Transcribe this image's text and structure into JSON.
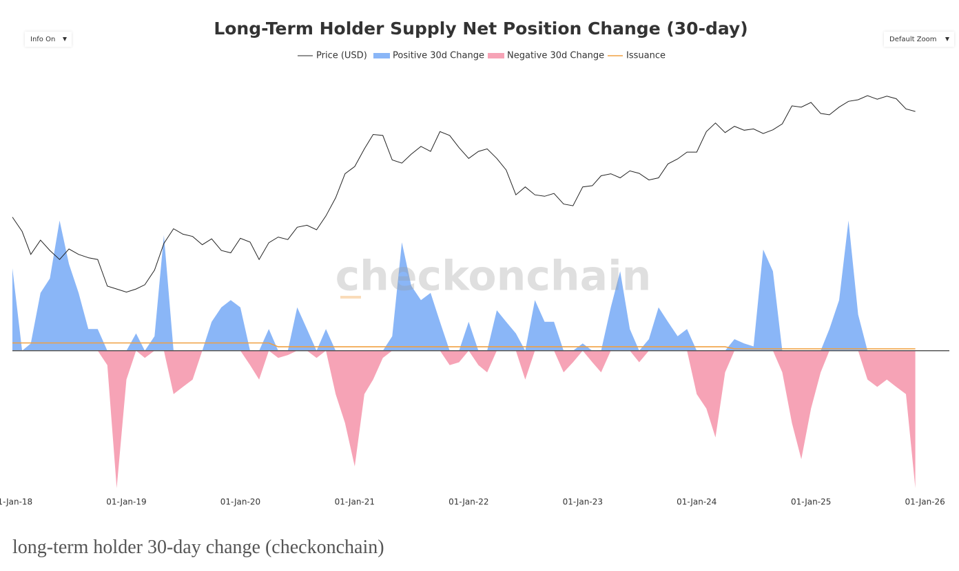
{
  "controls": {
    "info": "Info On",
    "zoom": "Default Zoom"
  },
  "watermark": "checkonchain",
  "caption": "long-term holder 30-day change (checkonchain)",
  "chart_data": {
    "type": "combo",
    "title": "Long-Term Holder Supply Net Position Change (30-day)",
    "x": [
      "2018-01-01",
      "2018-02-01",
      "2018-03-01",
      "2018-04-01",
      "2018-05-01",
      "2018-06-01",
      "2018-07-01",
      "2018-08-01",
      "2018-09-01",
      "2018-10-01",
      "2018-11-01",
      "2018-12-01",
      "2019-01-01",
      "2019-02-01",
      "2019-03-01",
      "2019-04-01",
      "2019-05-01",
      "2019-06-01",
      "2019-07-01",
      "2019-08-01",
      "2019-09-01",
      "2019-10-01",
      "2019-11-01",
      "2019-12-01",
      "2020-01-01",
      "2020-02-01",
      "2020-03-01",
      "2020-04-01",
      "2020-05-01",
      "2020-06-01",
      "2020-07-01",
      "2020-08-01",
      "2020-09-01",
      "2020-10-01",
      "2020-11-01",
      "2020-12-01",
      "2021-01-01",
      "2021-02-01",
      "2021-03-01",
      "2021-04-01",
      "2021-05-01",
      "2021-06-01",
      "2021-07-01",
      "2021-08-01",
      "2021-09-01",
      "2021-10-01",
      "2021-11-01",
      "2021-12-01",
      "2022-01-01",
      "2022-02-01",
      "2022-03-01",
      "2022-04-01",
      "2022-05-01",
      "2022-06-01",
      "2022-07-01",
      "2022-08-01",
      "2022-09-01",
      "2022-10-01",
      "2022-11-01",
      "2022-12-01",
      "2023-01-01",
      "2023-02-01",
      "2023-03-01",
      "2023-04-01",
      "2023-05-01",
      "2023-06-01",
      "2023-07-01",
      "2023-08-01",
      "2023-09-01",
      "2023-10-01",
      "2023-11-01",
      "2023-12-01",
      "2024-01-01",
      "2024-02-01",
      "2024-03-01",
      "2024-04-01",
      "2024-05-01",
      "2024-06-01",
      "2024-07-01",
      "2024-08-01",
      "2024-09-01",
      "2024-10-01",
      "2024-11-01",
      "2024-12-01",
      "2025-01-01",
      "2025-02-01",
      "2025-03-01",
      "2025-04-01",
      "2025-05-01",
      "2025-06-01",
      "2025-07-01",
      "2025-08-01",
      "2025-09-01",
      "2025-10-01",
      "2025-11-01",
      "2025-12-01"
    ],
    "xlim": [
      "2018-01-01",
      "2026-03-20"
    ],
    "xticks": [
      {
        "value": "2018-01-01",
        "label": "01-Jan-18"
      },
      {
        "value": "2019-01-01",
        "label": "01-Jan-19"
      },
      {
        "value": "2020-01-01",
        "label": "01-Jan-20"
      },
      {
        "value": "2021-01-01",
        "label": "01-Jan-21"
      },
      {
        "value": "2022-01-01",
        "label": "01-Jan-22"
      },
      {
        "value": "2023-01-01",
        "label": "01-Jan-23"
      },
      {
        "value": "2024-01-01",
        "label": "01-Jan-24"
      },
      {
        "value": "2025-01-01",
        "label": "01-Jan-25"
      },
      {
        "value": "2026-01-01",
        "label": "01-Jan-26"
      }
    ],
    "ylim": [
      -1000000,
      2140000
    ],
    "y2lim": [
      100,
      300000
    ],
    "y2log": true,
    "legend": "top",
    "series": [
      {
        "name": "Price (USD)",
        "type": "line",
        "axis": "y2",
        "color": "#222222",
        "values": [
          13500,
          10500,
          7000,
          9000,
          7500,
          6400,
          7700,
          7000,
          6600,
          6400,
          4000,
          3800,
          3600,
          3800,
          4100,
          5300,
          8500,
          11000,
          10000,
          9600,
          8300,
          9200,
          7500,
          7200,
          9300,
          8700,
          6400,
          8600,
          9500,
          9100,
          11300,
          11700,
          10800,
          13800,
          19000,
          29000,
          33000,
          45000,
          58000,
          57000,
          37000,
          35000,
          41000,
          47000,
          43000,
          61000,
          57000,
          46000,
          38000,
          43000,
          45000,
          38000,
          31000,
          20000,
          23000,
          20000,
          19500,
          20500,
          17000,
          16500,
          23000,
          23500,
          28000,
          29000,
          27000,
          30500,
          29200,
          26000,
          27000,
          34500,
          37700,
          42500,
          42500,
          61000,
          71000,
          60000,
          67000,
          62500,
          64000,
          59000,
          63000,
          70000,
          96000,
          94000,
          102000,
          84000,
          82000,
          94000,
          104000,
          107000,
          115000,
          108000,
          114000,
          109000,
          91000,
          87000
        ]
      },
      {
        "name": "Positive 30d Change",
        "type": "area",
        "color": "#8ab6f7",
        "values": [
          570000,
          0,
          50000,
          400000,
          500000,
          900000,
          600000,
          400000,
          150000,
          150000,
          0,
          0,
          0,
          120000,
          0,
          100000,
          800000,
          0,
          0,
          0,
          0,
          200000,
          300000,
          350000,
          300000,
          0,
          0,
          150000,
          0,
          0,
          300000,
          150000,
          0,
          150000,
          0,
          0,
          0,
          0,
          0,
          0,
          100000,
          750000,
          450000,
          350000,
          400000,
          200000,
          0,
          0,
          200000,
          0,
          0,
          280000,
          200000,
          120000,
          0,
          350000,
          200000,
          200000,
          0,
          0,
          50000,
          0,
          0,
          300000,
          550000,
          150000,
          0,
          80000,
          300000,
          200000,
          100000,
          150000,
          0,
          0,
          0,
          0,
          80000,
          50000,
          30000,
          700000,
          550000,
          0,
          0,
          0,
          0,
          0,
          150000,
          350000,
          900000,
          250000,
          0,
          0,
          0,
          0,
          0,
          0
        ]
      },
      {
        "name": "Negative 30d Change",
        "type": "area",
        "color": "#f6a3b6",
        "values": [
          0,
          0,
          0,
          0,
          0,
          0,
          0,
          0,
          0,
          0,
          -100000,
          -950000,
          -200000,
          0,
          -50000,
          0,
          0,
          -300000,
          -250000,
          -200000,
          0,
          0,
          0,
          0,
          0,
          -100000,
          -200000,
          0,
          -50000,
          -30000,
          0,
          0,
          -50000,
          0,
          -300000,
          -500000,
          -800000,
          -300000,
          -200000,
          -50000,
          0,
          0,
          0,
          0,
          0,
          0,
          -100000,
          -80000,
          0,
          -100000,
          -150000,
          0,
          0,
          0,
          -200000,
          0,
          0,
          0,
          -150000,
          -80000,
          0,
          -80000,
          -150000,
          0,
          0,
          0,
          -80000,
          0,
          0,
          0,
          0,
          0,
          -300000,
          -400000,
          -600000,
          -150000,
          0,
          0,
          0,
          0,
          0,
          -150000,
          -500000,
          -750000,
          -400000,
          -150000,
          0,
          0,
          0,
          0,
          -200000,
          -250000,
          -200000,
          -250000,
          -300000,
          -950000
        ]
      },
      {
        "name": "Issuance",
        "type": "line",
        "color": "#f0a040",
        "values": [
          54000,
          54000,
          54000,
          54000,
          54000,
          54000,
          54000,
          54000,
          54000,
          54000,
          54000,
          54000,
          54000,
          54000,
          54000,
          54000,
          54000,
          54000,
          54000,
          54000,
          54000,
          54000,
          54000,
          54000,
          54000,
          54000,
          54000,
          54000,
          27000,
          27000,
          27000,
          27000,
          27000,
          27000,
          27000,
          27000,
          27000,
          27000,
          27000,
          27000,
          27000,
          27000,
          27000,
          27000,
          27000,
          27000,
          27000,
          27000,
          27000,
          27000,
          27000,
          27000,
          27000,
          27000,
          27000,
          27000,
          27000,
          27000,
          27000,
          27000,
          27000,
          27000,
          27000,
          27000,
          27000,
          27000,
          27000,
          27000,
          27000,
          27000,
          27000,
          27000,
          27000,
          27000,
          27000,
          27000,
          13500,
          13500,
          13500,
          13500,
          13500,
          13500,
          13500,
          13500,
          13500,
          13500,
          13500,
          13500,
          13500,
          13500,
          13500,
          13500,
          13500,
          13500,
          13500,
          13500
        ]
      }
    ]
  }
}
